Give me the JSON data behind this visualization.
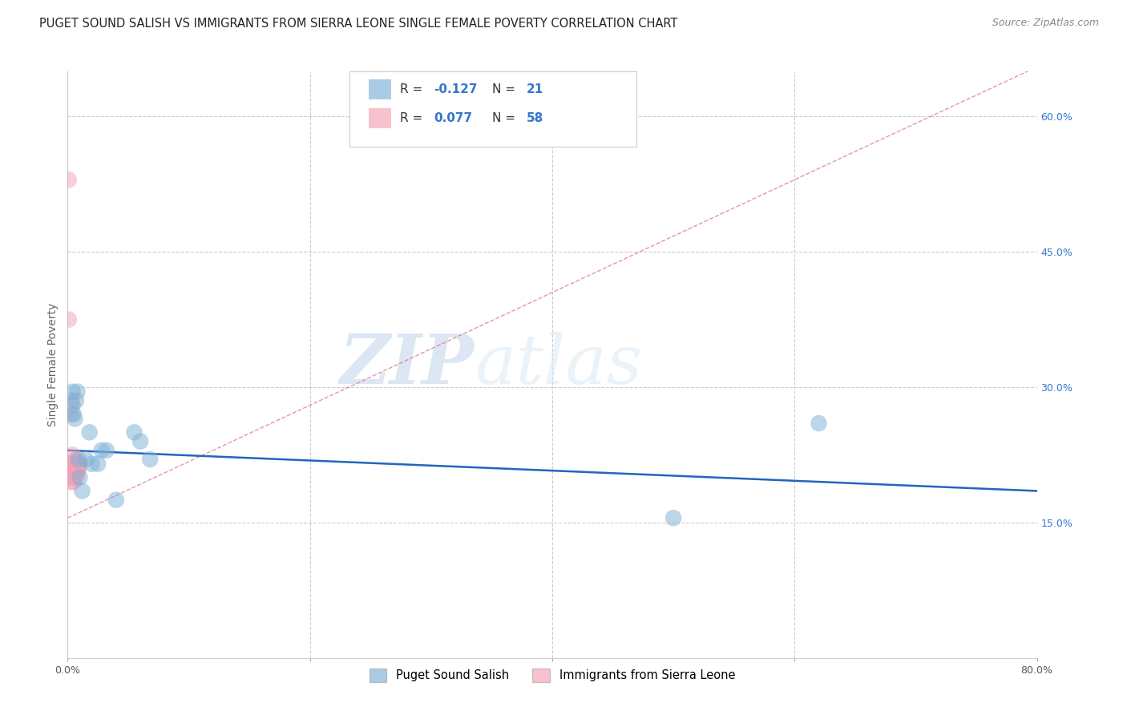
{
  "title": "PUGET SOUND SALISH VS IMMIGRANTS FROM SIERRA LEONE SINGLE FEMALE POVERTY CORRELATION CHART",
  "source": "Source: ZipAtlas.com",
  "ylabel": "Single Female Poverty",
  "xlim": [
    0,
    0.8
  ],
  "ylim": [
    0,
    0.65
  ],
  "xtick_vals": [
    0.0,
    0.2,
    0.4,
    0.6,
    0.8
  ],
  "xtick_labels": [
    "0.0%",
    "",
    "",
    "",
    "80.0%"
  ],
  "ytick_right": [
    0.15,
    0.3,
    0.45,
    0.6
  ],
  "ytick_right_labels": [
    "15.0%",
    "30.0%",
    "45.0%",
    "60.0%"
  ],
  "blue_color": "#7bafd4",
  "pink_color": "#f4a0b5",
  "blue_trend_color": "#2266bb",
  "pink_trend_color": "#e07090",
  "text_dark": "#333333",
  "blue_label_color": "#3377cc",
  "background_color": "#ffffff",
  "grid_color": "#cccccc",
  "salish_x": [
    0.004,
    0.004,
    0.005,
    0.006,
    0.007,
    0.008,
    0.009,
    0.01,
    0.012,
    0.015,
    0.018,
    0.02,
    0.025,
    0.028,
    0.032,
    0.04,
    0.055,
    0.06,
    0.068,
    0.62,
    0.5
  ],
  "salish_y": [
    0.295,
    0.28,
    0.27,
    0.265,
    0.285,
    0.295,
    0.22,
    0.2,
    0.185,
    0.22,
    0.25,
    0.215,
    0.215,
    0.23,
    0.23,
    0.175,
    0.25,
    0.24,
    0.22,
    0.26,
    0.155
  ],
  "sierra_leone_x": [
    0.001,
    0.001,
    0.001,
    0.001,
    0.002,
    0.002,
    0.002,
    0.002,
    0.003,
    0.003,
    0.003,
    0.003,
    0.003,
    0.004,
    0.004,
    0.004,
    0.004,
    0.004,
    0.004,
    0.004,
    0.005,
    0.005,
    0.005,
    0.005,
    0.005,
    0.005,
    0.005,
    0.005,
    0.005,
    0.005,
    0.006,
    0.006,
    0.006,
    0.006,
    0.006,
    0.006,
    0.006,
    0.006,
    0.006,
    0.007,
    0.007,
    0.007,
    0.007,
    0.007,
    0.007,
    0.007,
    0.007,
    0.008,
    0.008,
    0.008,
    0.008,
    0.008,
    0.008,
    0.009,
    0.009,
    0.009,
    0.009,
    0.01
  ],
  "sierra_leone_y": [
    0.53,
    0.375,
    0.215,
    0.215,
    0.21,
    0.215,
    0.2,
    0.215,
    0.285,
    0.27,
    0.215,
    0.21,
    0.195,
    0.225,
    0.215,
    0.215,
    0.21,
    0.21,
    0.205,
    0.2,
    0.215,
    0.215,
    0.21,
    0.21,
    0.215,
    0.21,
    0.21,
    0.205,
    0.2,
    0.195,
    0.22,
    0.215,
    0.215,
    0.21,
    0.21,
    0.205,
    0.2,
    0.215,
    0.21,
    0.215,
    0.215,
    0.21,
    0.21,
    0.205,
    0.215,
    0.21,
    0.2,
    0.215,
    0.21,
    0.215,
    0.215,
    0.21,
    0.205,
    0.215,
    0.21,
    0.215,
    0.21,
    0.215
  ],
  "salish_trend_x": [
    0.0,
    0.8
  ],
  "salish_trend_y": [
    0.23,
    0.185
  ],
  "sierra_trend_x": [
    0.0,
    0.8
  ],
  "sierra_trend_y": [
    0.155,
    0.655
  ],
  "watermark_zip": "ZIP",
  "watermark_atlas": "atlas",
  "legend_r1": "-0.127",
  "legend_n1": "21",
  "legend_r2": "0.077",
  "legend_n2": "58",
  "title_fontsize": 10.5,
  "axis_label_fontsize": 10,
  "tick_fontsize": 9,
  "legend_fontsize": 11
}
